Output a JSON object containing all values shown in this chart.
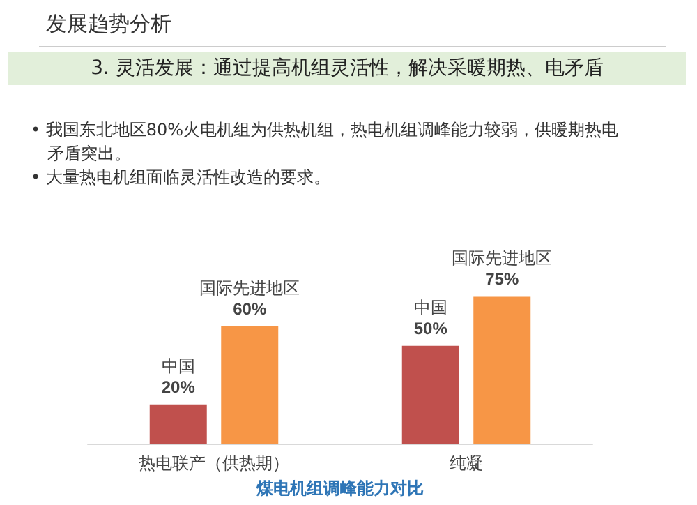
{
  "chart_data": {
    "type": "bar",
    "title": "发展趋势分析",
    "subtitle": "3. 灵活发展：通过提高机组灵活性，解决采暖期热、电矛盾",
    "annotations": [
      "• 我国东北地区80%火电机组为供热机组，热电机组调峰能力较弱，供暖期热电矛盾突出。",
      "• 大量热电机组面临灵活性改造的要求。"
    ],
    "xlabel": "煤电机组调峰能力对比",
    "categories": [
      "热电联产（供热期）",
      "纯凝"
    ],
    "series": [
      {
        "name": "中国",
        "color": "#c0504d",
        "values": [
          20,
          50
        ],
        "value_labels": [
          "20%",
          "50%"
        ]
      },
      {
        "name": "国际先进地区",
        "color": "#f79646",
        "values": [
          60,
          75
        ],
        "value_labels": [
          "60%",
          "75%"
        ]
      }
    ],
    "legend": false
  }
}
